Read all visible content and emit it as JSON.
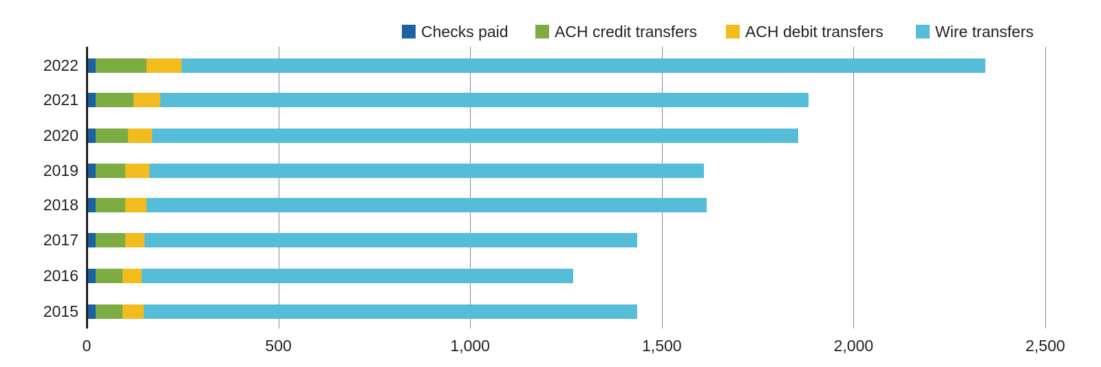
{
  "chart_data": {
    "type": "bar",
    "orientation": "horizontal",
    "stacked": true,
    "title": "",
    "xlabel": "",
    "ylabel": "",
    "xlim": [
      0,
      2500
    ],
    "x_ticks": [
      0,
      500,
      1000,
      1500,
      2000,
      2500
    ],
    "x_tick_labels": [
      "0",
      "500",
      "1,000",
      "1,500",
      "2,000",
      "2,500"
    ],
    "grid": "vertical",
    "legend_position": "top-right",
    "categories": [
      "2022",
      "2021",
      "2020",
      "2019",
      "2018",
      "2017",
      "2016",
      "2015"
    ],
    "series": [
      {
        "name": "Checks paid",
        "color": "#1a62a0",
        "values": [
          22,
          22,
          22,
          22,
          22,
          22,
          22,
          22
        ]
      },
      {
        "name": "ACH credit transfers",
        "color": "#7cac42",
        "values": [
          132,
          98,
          84,
          77,
          77,
          77,
          70,
          70
        ]
      },
      {
        "name": "ACH debit transfers",
        "color": "#f2bb1e",
        "values": [
          92,
          70,
          63,
          63,
          55,
          50,
          50,
          56
        ]
      },
      {
        "name": "Wire transfers",
        "color": "#55bdd7",
        "values": [
          2096,
          1691,
          1685,
          1446,
          1461,
          1285,
          1125,
          1286
        ]
      }
    ],
    "totals": [
      2342,
      1881,
      1854,
      1608,
      1615,
      1434,
      1267,
      1434
    ]
  },
  "legend": {
    "items": [
      {
        "label": "Checks paid",
        "color": "#1a62a0"
      },
      {
        "label": "ACH credit transfers",
        "color": "#7cac42"
      },
      {
        "label": "ACH debit transfers",
        "color": "#f2bb1e"
      },
      {
        "label": "Wire transfers",
        "color": "#55bdd7"
      }
    ]
  }
}
